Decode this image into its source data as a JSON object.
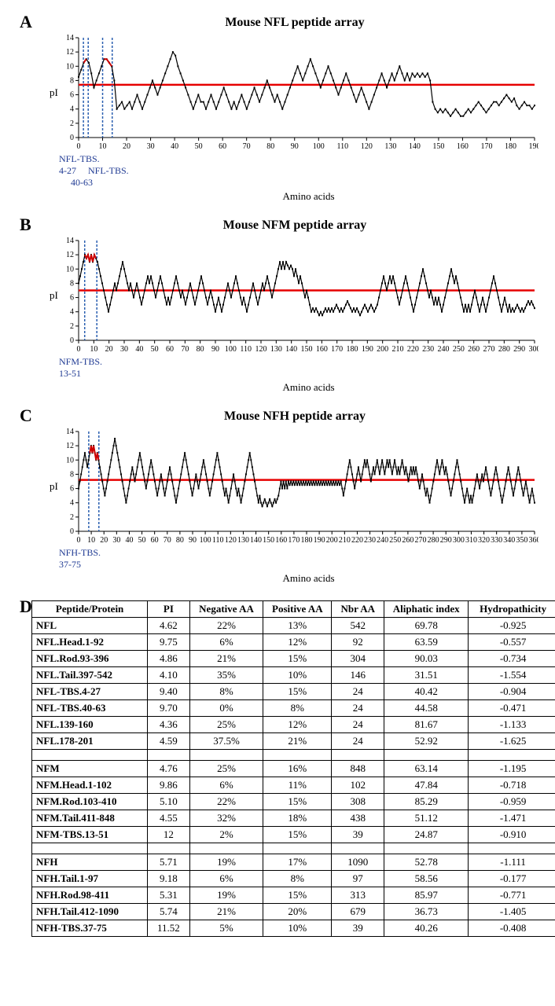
{
  "panels": {
    "A": {
      "label": "A",
      "title": "Mouse NFL peptide array",
      "ylabel": "pI",
      "xlabel": "Amino acids",
      "ylim": [
        0,
        14
      ],
      "ytick_step": 2,
      "xlim": [
        0,
        190
      ],
      "xtick_step": 10,
      "threshold_y": 7.4,
      "threshold_color": "#e60000",
      "line_color": "#000000",
      "highlight_color": "#cc0000",
      "annotation_color": "#1f3a93",
      "dash_color": "#2a5fb0",
      "annotations": [
        {
          "text": "NFL-TBS.\n4-27",
          "x": 3
        },
        {
          "text": "NFL-TBS.\n40-63",
          "x": 12
        }
      ],
      "dash_lines_x": [
        2,
        4,
        10,
        14
      ],
      "highlight_ranges": [
        [
          2,
          4
        ],
        [
          10,
          14
        ]
      ],
      "data_y": [
        8.5,
        9.5,
        10.5,
        11,
        10.5,
        9,
        7,
        8,
        9,
        10,
        11,
        11,
        10.5,
        10,
        8,
        4,
        4.5,
        5,
        4,
        4.5,
        5,
        4,
        5,
        6,
        5,
        4,
        5,
        6,
        7,
        8,
        7,
        6,
        7,
        8,
        9,
        10,
        11,
        12,
        11.5,
        10,
        9,
        8,
        7,
        6,
        5,
        4,
        5,
        6,
        5,
        5,
        4,
        5,
        6,
        5,
        4,
        5,
        6,
        7,
        6,
        5,
        4,
        5,
        4,
        5,
        6,
        5,
        4,
        5,
        6,
        7,
        6,
        5,
        6,
        7,
        8,
        7,
        6,
        5,
        6,
        5,
        4,
        5,
        6,
        7,
        8,
        9,
        10,
        9,
        8,
        9,
        10,
        11,
        10,
        9,
        8,
        7,
        8,
        9,
        10,
        9,
        8,
        7,
        6,
        7,
        8,
        9,
        8,
        7,
        6,
        5,
        6,
        7,
        6,
        5,
        4,
        5,
        6,
        7,
        8,
        9,
        8,
        7,
        8,
        9,
        8,
        9,
        10,
        9,
        8,
        9,
        8,
        9,
        8.5,
        9,
        8.5,
        9,
        8.5,
        9,
        8,
        5,
        4,
        3.5,
        4,
        3.5,
        4,
        3.5,
        3,
        3.5,
        4,
        3.5,
        3,
        3,
        3.5,
        4,
        3.5,
        4,
        4.5,
        5,
        4.5,
        4,
        3.5,
        4,
        4.5,
        5,
        5,
        4.5,
        5,
        5.5,
        6,
        5.5,
        5,
        5.5,
        4.5,
        4,
        4.5,
        5,
        4.5,
        4.5,
        4,
        4.5
      ]
    },
    "B": {
      "label": "B",
      "title": "Mouse NFM peptide array",
      "ylabel": "pI",
      "xlabel": "Amino acids",
      "ylim": [
        0,
        14
      ],
      "ytick_step": 2,
      "xlim": [
        0,
        300
      ],
      "xtick_step": 10,
      "threshold_y": 7.0,
      "threshold_color": "#e60000",
      "line_color": "#000000",
      "highlight_color": "#cc0000",
      "annotation_color": "#1f3a93",
      "dash_color": "#2a5fb0",
      "annotations": [
        {
          "text": "NFM-TBS.\n13-51",
          "x": 5
        }
      ],
      "dash_lines_x": [
        4,
        12
      ],
      "highlight_ranges": [
        [
          4,
          12
        ]
      ],
      "data_y": [
        8,
        9,
        10,
        11,
        12,
        11.5,
        12,
        11,
        12,
        11,
        12,
        11.5,
        11,
        10,
        9,
        8,
        7,
        6,
        5,
        4,
        5,
        6,
        7,
        8,
        7,
        8,
        9,
        10,
        11,
        10,
        9,
        8,
        7,
        8,
        7,
        6,
        7,
        8,
        7,
        6,
        5,
        6,
        7,
        8,
        9,
        8,
        9,
        8,
        7,
        6,
        7,
        8,
        9,
        8,
        7,
        6,
        5,
        6,
        5,
        6,
        7,
        8,
        9,
        8,
        7,
        6,
        7,
        6,
        5,
        6,
        7,
        8,
        7,
        6,
        5,
        6,
        7,
        8,
        9,
        8,
        7,
        6,
        5,
        6,
        7,
        6,
        5,
        4,
        5,
        6,
        5,
        4,
        5,
        6,
        7,
        8,
        7,
        6,
        7,
        8,
        9,
        8,
        7,
        6,
        5,
        6,
        5,
        4,
        5,
        6,
        7,
        8,
        7,
        6,
        5,
        6,
        7,
        8,
        7,
        8,
        9,
        8,
        7,
        6,
        7,
        8,
        9,
        10,
        11,
        10,
        11,
        10,
        11,
        10.5,
        10,
        10.5,
        10,
        9,
        10,
        9,
        8,
        9,
        8,
        7,
        6,
        7,
        6,
        5,
        4,
        4.5,
        4,
        4.5,
        4,
        3.5,
        4,
        3.5,
        4,
        4.5,
        4,
        4.5,
        4,
        4.5,
        4,
        4.5,
        5,
        4.5,
        4,
        4.5,
        4,
        4.5,
        5,
        5.5,
        5,
        4.5,
        4,
        4.5,
        4,
        4.5,
        4,
        3.5,
        4,
        4.5,
        5,
        4.5,
        4,
        4.5,
        5,
        4.5,
        4,
        4.5,
        5,
        6,
        7,
        8,
        9,
        8,
        7,
        8,
        9,
        8,
        9,
        8,
        7,
        6,
        5,
        6,
        7,
        8,
        9,
        8,
        7,
        6,
        5,
        4,
        5,
        6,
        7,
        8,
        9,
        10,
        9,
        8,
        7,
        6,
        7,
        6,
        5,
        6,
        5,
        6,
        5,
        4,
        5,
        6,
        7,
        8,
        9,
        10,
        9,
        8,
        9,
        8,
        7,
        6,
        5,
        4,
        5,
        4,
        5,
        4,
        5,
        6,
        7,
        6,
        5,
        4,
        5,
        6,
        5,
        4,
        5,
        6,
        7,
        8,
        9,
        8,
        7,
        6,
        5,
        4,
        5,
        6,
        5,
        4,
        5,
        4,
        4.5,
        4,
        4.5,
        5,
        4.5,
        4,
        4.5,
        4,
        4.5,
        5,
        5.5,
        5,
        5.5,
        5,
        4.5
      ]
    },
    "C": {
      "label": "C",
      "title": "Mouse NFH peptide array",
      "ylabel": "pI",
      "xlabel": "Amino acids",
      "ylim": [
        0,
        14
      ],
      "ytick_step": 2,
      "xlim": [
        0,
        360
      ],
      "xtick_step": 10,
      "threshold_y": 7.2,
      "threshold_color": "#e60000",
      "line_color": "#000000",
      "highlight_color": "#cc0000",
      "annotation_color": "#1f3a93",
      "dash_color": "#2a5fb0",
      "annotations": [
        {
          "text": "NFH-TBS.\n37-75",
          "x": 8
        }
      ],
      "dash_lines_x": [
        8,
        16
      ],
      "highlight_ranges": [
        [
          8,
          16
        ]
      ],
      "data_y": [
        6,
        7,
        8,
        9,
        10,
        11,
        10,
        9,
        10,
        11,
        12,
        11,
        12,
        11,
        10,
        11,
        10,
        9,
        8,
        7,
        6,
        5,
        6,
        7,
        8,
        9,
        10,
        11,
        12,
        13,
        12,
        11,
        10,
        9,
        8,
        7,
        6,
        5,
        4,
        5,
        6,
        7,
        8,
        9,
        8,
        7,
        8,
        9,
        10,
        11,
        10,
        9,
        8,
        7,
        6,
        7,
        8,
        9,
        10,
        9,
        8,
        7,
        6,
        5,
        6,
        7,
        8,
        7,
        6,
        5,
        6,
        7,
        8,
        9,
        8,
        7,
        6,
        5,
        4,
        5,
        6,
        7,
        8,
        9,
        10,
        11,
        10,
        9,
        8,
        7,
        6,
        5,
        6,
        7,
        8,
        7,
        6,
        7,
        8,
        9,
        10,
        9,
        8,
        7,
        6,
        5,
        6,
        7,
        8,
        9,
        10,
        11,
        10,
        9,
        8,
        7,
        6,
        5,
        6,
        5,
        4,
        5,
        6,
        7,
        8,
        7,
        6,
        5,
        6,
        5,
        4,
        5,
        6,
        7,
        8,
        9,
        10,
        11,
        10,
        9,
        8,
        7,
        6,
        5,
        4,
        5,
        4,
        3.5,
        4,
        4.5,
        4,
        3.5,
        4,
        4.5,
        4,
        3.5,
        4,
        4.5,
        4,
        4.5,
        5,
        6,
        7,
        6,
        7,
        6,
        7,
        6,
        7,
        6.5,
        7,
        6.5,
        7,
        6.5,
        7,
        6.5,
        7,
        6.5,
        7,
        6.5,
        7,
        6.5,
        7,
        6.5,
        7,
        6.5,
        7,
        6.5,
        7,
        6.5,
        7,
        6.5,
        7,
        6.5,
        7,
        6.5,
        7,
        6.5,
        7,
        6.5,
        7,
        6.5,
        7,
        6.5,
        7,
        6.5,
        7,
        6.5,
        7,
        6.5,
        7,
        6,
        5,
        6,
        7,
        8,
        9,
        10,
        9,
        8,
        7,
        6,
        7,
        8,
        9,
        8,
        7,
        8,
        9,
        10,
        9,
        10,
        9,
        8,
        7,
        8,
        9,
        8,
        9,
        10,
        9,
        8,
        9,
        10,
        9,
        8,
        9,
        10,
        9,
        10,
        9,
        8,
        9,
        10,
        9,
        8,
        9,
        8,
        9,
        10,
        9,
        8,
        9,
        8,
        7,
        8,
        9,
        8,
        9,
        8,
        9,
        8,
        7,
        6,
        7,
        8,
        7,
        6,
        5,
        6,
        5,
        4,
        5,
        6,
        7,
        8,
        9,
        10,
        9,
        8,
        9,
        10,
        9,
        8,
        9,
        8,
        7,
        6,
        5,
        6,
        7,
        8,
        9,
        10,
        9,
        8,
        7,
        6,
        5,
        4,
        5,
        6,
        5,
        4,
        5,
        4,
        5,
        6,
        7,
        8,
        7,
        6,
        7,
        8,
        7,
        8,
        9,
        8,
        7,
        6,
        5,
        6,
        7,
        8,
        9,
        8,
        7,
        6,
        5,
        4,
        5,
        6,
        7,
        8,
        9,
        8,
        7,
        6,
        5,
        6,
        7,
        8,
        9,
        8,
        7,
        6,
        5,
        6,
        7,
        6,
        5,
        4,
        5,
        6,
        5,
        4
      ]
    }
  },
  "tableD": {
    "label": "D",
    "columns": [
      "Peptide/Protein",
      "PI",
      "Negative AA",
      "Positive AA",
      "Nbr AA",
      "Aliphatic index",
      "Hydropathicity"
    ],
    "col_widths": [
      "22%",
      "8%",
      "14%",
      "13%",
      "10%",
      "16%",
      "17%"
    ],
    "groups": [
      [
        [
          "NFL",
          "4.62",
          "22%",
          "13%",
          "542",
          "69.78",
          "-0.925"
        ],
        [
          "NFL.Head.1-92",
          "9.75",
          "6%",
          "12%",
          "92",
          "63.59",
          "-0.557"
        ],
        [
          "NFL.Rod.93-396",
          "4.86",
          "21%",
          "15%",
          "304",
          "90.03",
          "-0.734"
        ],
        [
          "NFL.Tail.397-542",
          "4.10",
          "35%",
          "10%",
          "146",
          "31.51",
          "-1.554"
        ],
        [
          "NFL-TBS.4-27",
          "9.40",
          "8%",
          "15%",
          "24",
          "40.42",
          "-0.904"
        ],
        [
          "NFL-TBS.40-63",
          "9.70",
          "0%",
          "8%",
          "24",
          "44.58",
          "-0.471"
        ],
        [
          "NFL.139-160",
          "4.36",
          "25%",
          "12%",
          "24",
          "81.67",
          "-1.133"
        ],
        [
          "NFL.178-201",
          "4.59",
          "37.5%",
          "21%",
          "24",
          "52.92",
          "-1.625"
        ]
      ],
      [
        [
          "NFM",
          "4.76",
          "25%",
          "16%",
          "848",
          "63.14",
          "-1.195"
        ],
        [
          "NFM.Head.1-102",
          "9.86",
          "6%",
          "11%",
          "102",
          "47.84",
          "-0.718"
        ],
        [
          "NFM.Rod.103-410",
          "5.10",
          "22%",
          "15%",
          "308",
          "85.29",
          "-0.959"
        ],
        [
          "NFM.Tail.411-848",
          "4.55",
          "32%",
          "18%",
          "438",
          "51.12",
          "-1.471"
        ],
        [
          "NFM-TBS.13-51",
          "12",
          "2%",
          "15%",
          "39",
          "24.87",
          "-0.910"
        ]
      ],
      [
        [
          "NFH",
          "5.71",
          "19%",
          "17%",
          "1090",
          "52.78",
          "-1.111"
        ],
        [
          "NFH.Tail.1-97",
          "9.18",
          "6%",
          "8%",
          "97",
          "58.56",
          "-0.177"
        ],
        [
          "NFH.Rod.98-411",
          "5.31",
          "19%",
          "15%",
          "313",
          "85.97",
          "-0.771"
        ],
        [
          "NFH.Tail.412-1090",
          "5.74",
          "21%",
          "20%",
          "679",
          "36.73",
          "-1.405"
        ],
        [
          "NFH-TBS.37-75",
          "11.52",
          "5%",
          "10%",
          "39",
          "40.26",
          "-0.408"
        ]
      ]
    ]
  },
  "chart_plot_width": 610,
  "chart_plot_height": 150,
  "axis_font_size": 10
}
